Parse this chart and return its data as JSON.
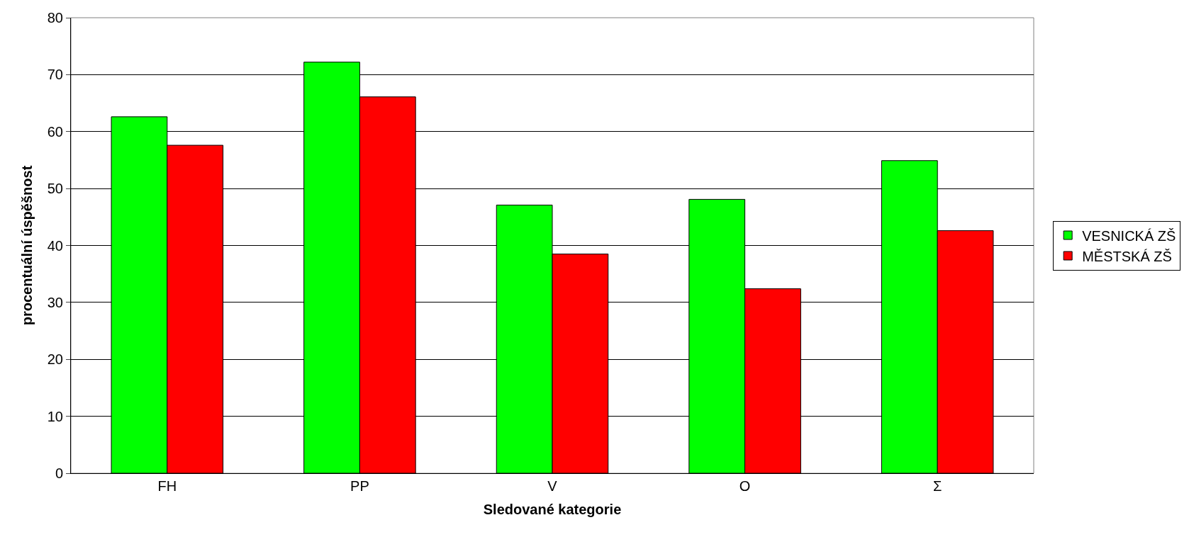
{
  "chart_data": {
    "type": "bar",
    "xlabel": "Sledované kategorie",
    "ylabel": "procentuální úspěšnost",
    "categories": [
      "FH",
      "PP",
      "V",
      "O",
      "Σ"
    ],
    "series": [
      {
        "name": "VESNICKÁ ZŠ",
        "color": "#00ff00",
        "values": [
          62.6,
          72.2,
          47.1,
          48.1,
          54.9
        ]
      },
      {
        "name": "MĚSTSKÁ ZŠ",
        "color": "#ff0000",
        "values": [
          57.6,
          66.1,
          38.5,
          32.4,
          42.6
        ]
      }
    ],
    "ylim": [
      0,
      80
    ],
    "yticks": [
      0,
      10,
      20,
      30,
      40,
      50,
      60,
      70,
      80
    ],
    "grid": "y",
    "legend": "right"
  }
}
